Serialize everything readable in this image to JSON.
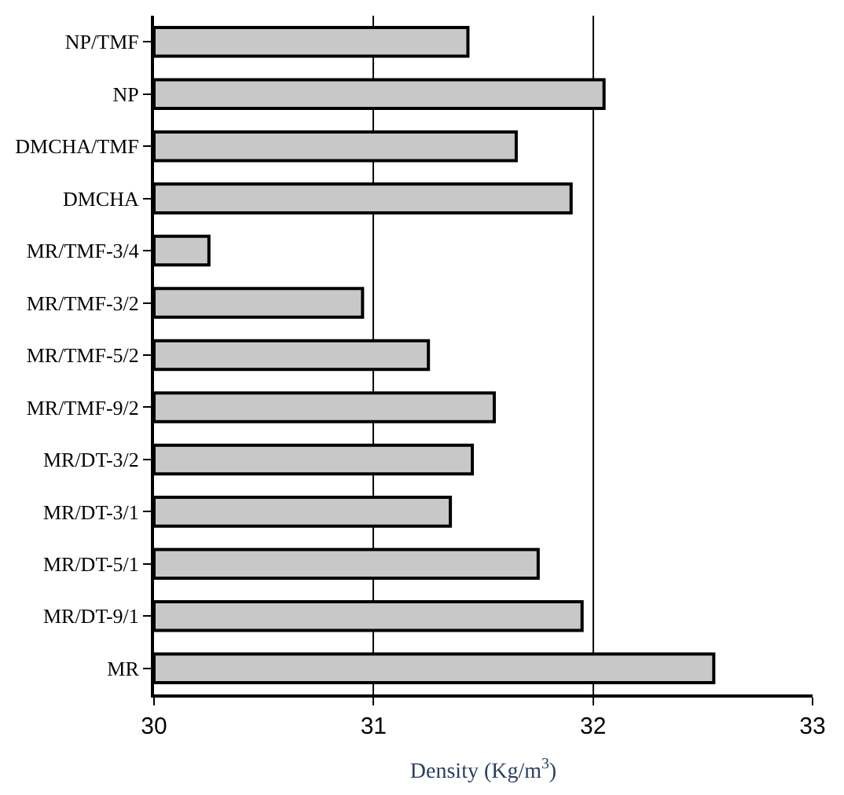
{
  "chart_data": {
    "type": "bar",
    "orientation": "horizontal",
    "xlabel": "Density (Kg/m$^{3}$)",
    "categories": [
      "NP/TMF",
      "NP",
      "DMCHA/TMF",
      "DMCHA",
      "MR/TMF-3/4",
      "MR/TMF-3/2",
      "MR/TMF-5/2",
      "MR/TMF-9/2",
      "MR/DT-3/2",
      "MR/DT-3/1",
      "MR/DT-5/1",
      "MR/DT-9/1",
      "MR"
    ],
    "values": [
      31.43,
      32.05,
      31.65,
      31.9,
      30.25,
      30.95,
      31.25,
      31.55,
      31.45,
      31.35,
      31.75,
      31.95,
      32.55
    ],
    "color": "#c8c8c8",
    "xlim": [
      30,
      33
    ],
    "xticks": [
      30,
      31,
      32,
      33
    ],
    "grid": "x",
    "legend": false
  }
}
